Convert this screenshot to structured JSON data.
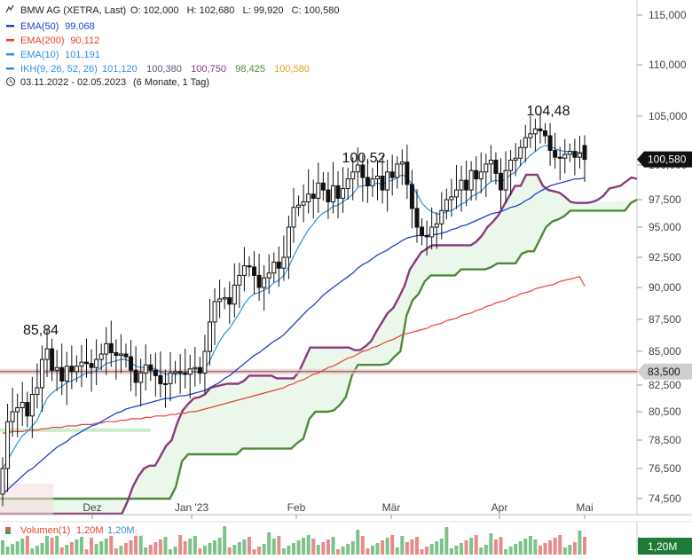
{
  "header": {
    "title": "BMW AG (XETRA, Last)",
    "ohlc": "O: 102,000   H: 102,680   L: 99,920   C: 100,580",
    "period": "03.11.2022 - 02.05.2023",
    "period_note": "(6 Monate, 1 Tag)"
  },
  "legend": [
    {
      "label": "EMA(50)",
      "value": "99,068",
      "color": "#1f3fcf"
    },
    {
      "label": "EMA(200)",
      "value": "90,112",
      "color": "#e8412e"
    },
    {
      "label": "EMA(10)",
      "value": "101,191",
      "color": "#2e8fe0"
    },
    {
      "label": "IKH(9, 26, 52, 26)",
      "value": "",
      "color": "#2e8fe0"
    }
  ],
  "ikh_values": [
    {
      "value": "101,120",
      "color": "#2e8fe0"
    },
    {
      "value": "100,380",
      "color": "#555577"
    },
    {
      "value": "100,750",
      "color": "#8a3a7a"
    },
    {
      "value": "98,425",
      "color": "#4a8a3a"
    },
    {
      "value": "100,580",
      "color": "#e0a020"
    }
  ],
  "annotations": [
    {
      "label": "85,84",
      "date": "2022-11-15",
      "value": 85.84
    },
    {
      "label": "100,52",
      "date": "2023-02-20",
      "value": 100.52
    },
    {
      "label": "104,48",
      "date": "2023-04-18",
      "value": 104.48
    }
  ],
  "price_tags": [
    {
      "label": "100,580",
      "value": 100.58,
      "color": "#111111"
    },
    {
      "label": "83,500",
      "value": 83.5,
      "color": "#cfcfcf"
    }
  ],
  "volume_panel": {
    "label": "Volumen(1)",
    "value_red": "1,20M",
    "value_green": "1,20M",
    "axis_tag": "1,20M"
  },
  "chart_data": {
    "type": "candlestick",
    "title": "BMW AG (XETRA, Last)",
    "x_axis": {
      "ticks": [
        "Dez",
        "Jan '23",
        "Feb",
        "Mär",
        "Apr",
        "Mai"
      ],
      "range": [
        "2022-11-03",
        "2023-05-02"
      ]
    },
    "y_axis": {
      "ticks": [
        "115,000",
        "110,000",
        "105,000",
        "100,000",
        "97,500",
        "95,000",
        "92,500",
        "90,000",
        "87,500",
        "85,000",
        "82,500",
        "80,500",
        "78,500",
        "76,500",
        "74,500"
      ],
      "tick_values": [
        115,
        110,
        105,
        100,
        97.5,
        95,
        92.5,
        90,
        87.5,
        85,
        82.5,
        80.5,
        78.5,
        76.5,
        74.5
      ],
      "range": [
        73.5,
        116
      ]
    },
    "horizontal_line": 83.5,
    "grid": false,
    "close": [
      76.5,
      79.8,
      80.5,
      80.8,
      81.2,
      80.2,
      81.8,
      82.3,
      84.4,
      85.2,
      83.6,
      83.8,
      82.8,
      83.9,
      83.5,
      83.9,
      84.2,
      84.1,
      83.8,
      84.4,
      84.8,
      85.6,
      84.9,
      84.7,
      84.8,
      84.6,
      83.6,
      82.7,
      83.4,
      84.0,
      83.6,
      83.2,
      82.6,
      82.6,
      83.4,
      83.5,
      83.4,
      83.3,
      83.7,
      83.8,
      83.4,
      85.0,
      87.3,
      88.9,
      89.1,
      89.2,
      88.7,
      90.2,
      91.0,
      91.8,
      91.7,
      91.0,
      90.0,
      90.8,
      91.2,
      92.1,
      91.6,
      92.5,
      95.0,
      96.8,
      97.0,
      97.3,
      97.9,
      97.6,
      98.7,
      98.2,
      97.3,
      98.5,
      97.6,
      98.3,
      99.0,
      99.5,
      100.0,
      99.1,
      98.5,
      99.0,
      99.2,
      98.2,
      99.5,
      99.1,
      100.1,
      100.3,
      98.6,
      96.7,
      95.0,
      94.3,
      94.2,
      95.0,
      95.3,
      96.5,
      97.5,
      97.7,
      98.2,
      98.9,
      98.2,
      99.6,
      99.0,
      99.5,
      100.1,
      100.5,
      99.4,
      98.2,
      99.6,
      100.5,
      100.7,
      101.8,
      102.8,
      103.2,
      103.7,
      103.5,
      103.0,
      101.5,
      100.8,
      100.7,
      101.1,
      101.4,
      100.8,
      101.2,
      100.58
    ],
    "open": [
      74.8,
      76.5,
      79.8,
      80.5,
      80.8,
      81.2,
      80.2,
      81.8,
      82.3,
      84.4,
      85.2,
      83.6,
      83.8,
      82.8,
      83.9,
      83.5,
      83.9,
      84.2,
      84.1,
      83.8,
      84.4,
      84.8,
      85.6,
      84.9,
      84.7,
      84.8,
      84.6,
      83.6,
      82.7,
      83.4,
      84.0,
      83.6,
      83.2,
      82.6,
      82.6,
      83.4,
      83.5,
      83.4,
      83.3,
      83.7,
      83.8,
      83.4,
      85.0,
      87.3,
      88.9,
      89.1,
      89.2,
      88.7,
      90.2,
      91.0,
      91.8,
      91.7,
      91.0,
      90.0,
      90.8,
      91.2,
      92.1,
      91.6,
      92.5,
      95.0,
      96.8,
      97.0,
      97.3,
      97.9,
      97.6,
      98.7,
      98.2,
      97.3,
      98.5,
      97.6,
      98.3,
      99.0,
      99.5,
      100.0,
      99.1,
      98.5,
      99.0,
      99.2,
      98.2,
      99.5,
      99.1,
      100.1,
      100.3,
      98.6,
      96.7,
      95.0,
      94.3,
      94.2,
      95.0,
      95.3,
      96.5,
      97.5,
      97.7,
      98.2,
      98.9,
      98.2,
      99.6,
      99.0,
      99.5,
      100.1,
      100.5,
      99.4,
      98.2,
      99.6,
      100.5,
      100.7,
      101.8,
      102.8,
      103.2,
      103.7,
      103.5,
      103.0,
      101.5,
      100.8,
      100.7,
      101.1,
      101.4,
      100.8,
      102.0
    ],
    "ema10": [
      76.5,
      77.1,
      77.7,
      78.3,
      78.8,
      79.1,
      79.5,
      79.9,
      80.7,
      81.5,
      81.9,
      82.2,
      82.4,
      82.7,
      82.8,
      83.0,
      83.2,
      83.4,
      83.4,
      83.6,
      83.8,
      84.1,
      84.2,
      84.3,
      84.4,
      84.4,
      84.2,
      83.9,
      83.8,
      83.8,
      83.8,
      83.7,
      83.5,
      83.3,
      83.3,
      83.3,
      83.3,
      83.3,
      83.4,
      83.5,
      83.4,
      83.7,
      84.3,
      85.1,
      85.8,
      86.4,
      86.8,
      87.4,
      88.0,
      88.7,
      89.2,
      89.5,
      89.6,
      89.8,
      90.0,
      90.4,
      90.6,
      91.0,
      91.7,
      92.6,
      93.4,
      94.1,
      94.8,
      95.3,
      95.9,
      96.3,
      96.5,
      96.9,
      97.0,
      97.3,
      97.6,
      97.9,
      98.4,
      98.5,
      98.5,
      98.6,
      98.7,
      98.6,
      98.8,
      98.9,
      99.1,
      99.3,
      99.1,
      98.6,
      97.9,
      97.2,
      96.7,
      96.4,
      96.2,
      96.2,
      96.4,
      96.5,
      96.8,
      97.1,
      97.3,
      97.7,
      97.9,
      98.1,
      98.5,
      98.8,
      98.9,
      98.8,
      99.0,
      99.3,
      99.5,
      100.0,
      100.5,
      101.0,
      101.4,
      101.8,
      102.0,
      101.9,
      101.7,
      101.5,
      101.4,
      101.4,
      101.3,
      101.3,
      101.2
    ],
    "ema50": [
      74.8,
      75.1,
      75.4,
      75.7,
      76.0,
      76.3,
      76.5,
      76.8,
      77.1,
      77.4,
      77.7,
      78.0,
      78.2,
      78.4,
      78.7,
      78.9,
      79.1,
      79.3,
      79.5,
      79.6,
      79.8,
      80.0,
      80.2,
      80.4,
      80.5,
      80.7,
      80.8,
      80.9,
      81.0,
      81.1,
      81.2,
      81.3,
      81.4,
      81.5,
      81.5,
      81.6,
      81.7,
      81.7,
      81.8,
      81.9,
      82.0,
      82.1,
      82.3,
      82.5,
      82.7,
      83.0,
      83.2,
      83.5,
      83.8,
      84.1,
      84.4,
      84.7,
      84.9,
      85.2,
      85.5,
      85.8,
      86.0,
      86.3,
      86.7,
      87.1,
      87.5,
      87.9,
      88.3,
      88.6,
      89.0,
      89.4,
      89.7,
      90.0,
      90.3,
      90.6,
      90.9,
      91.2,
      91.6,
      91.9,
      92.1,
      92.4,
      92.7,
      92.9,
      93.1,
      93.4,
      93.6,
      93.9,
      94.1,
      94.2,
      94.3,
      94.3,
      94.3,
      94.4,
      94.4,
      94.5,
      94.6,
      94.8,
      94.9,
      95.1,
      95.2,
      95.4,
      95.6,
      95.8,
      96.0,
      96.2,
      96.3,
      96.4,
      96.6,
      96.8,
      96.9,
      97.1,
      97.4,
      97.6,
      97.9,
      98.1,
      98.3,
      98.5,
      98.6,
      98.7,
      98.8,
      98.9,
      99.0,
      99.0,
      99.07
    ],
    "ema200": [
      79.0,
      79.0,
      79.1,
      79.1,
      79.1,
      79.2,
      79.2,
      79.2,
      79.3,
      79.3,
      79.4,
      79.4,
      79.4,
      79.5,
      79.5,
      79.5,
      79.6,
      79.6,
      79.6,
      79.7,
      79.7,
      79.8,
      79.8,
      79.8,
      79.9,
      79.9,
      80.0,
      80.0,
      80.0,
      80.1,
      80.1,
      80.2,
      80.2,
      80.2,
      80.3,
      80.3,
      80.4,
      80.4,
      80.5,
      80.5,
      80.6,
      80.7,
      80.8,
      80.9,
      81.0,
      81.1,
      81.2,
      81.3,
      81.4,
      81.5,
      81.6,
      81.7,
      81.8,
      81.9,
      82.0,
      82.1,
      82.2,
      82.3,
      82.5,
      82.6,
      82.8,
      82.9,
      83.1,
      83.3,
      83.4,
      83.6,
      83.8,
      83.9,
      84.1,
      84.3,
      84.5,
      84.6,
      84.8,
      85.0,
      85.1,
      85.3,
      85.4,
      85.6,
      85.8,
      85.9,
      86.1,
      86.3,
      86.4,
      86.5,
      86.6,
      86.7,
      86.8,
      87.0,
      87.1,
      87.2,
      87.4,
      87.5,
      87.6,
      87.8,
      87.9,
      88.0,
      88.2,
      88.3,
      88.5,
      88.6,
      88.8,
      88.9,
      89.0,
      89.2,
      89.3,
      89.5,
      89.6,
      89.7,
      89.9,
      90.0,
      90.1,
      90.2,
      90.3,
      90.5,
      90.6,
      90.7,
      90.8,
      90.9,
      90.11
    ],
    "senkou_a": [
      73.5,
      73.5,
      73.5,
      73.5,
      73.5,
      73.5,
      73.5,
      73.5,
      73.5,
      73.5,
      73.5,
      73.5,
      73.5,
      73.5,
      73.5,
      73.5,
      73.5,
      73.5,
      73.5,
      73.5,
      73.5,
      73.5,
      73.5,
      74.3,
      75.3,
      76.0,
      76.5,
      76.7,
      76.7,
      77.4,
      78.1,
      78.5,
      79.7,
      80.6,
      81.1,
      81.5,
      81.6,
      81.8,
      82.3,
      82.4,
      82.5,
      82.6,
      82.6,
      82.6,
      82.8,
      83.2,
      83.2,
      83.2,
      83.2,
      83.2,
      83.0,
      83.0,
      83.0,
      83.0,
      83.5,
      84.4,
      85.3,
      85.3,
      85.3,
      85.3,
      85.3,
      85.3,
      85.3,
      85.3,
      85.1,
      85.1,
      85.4,
      85.8,
      86.6,
      87.3,
      88.0,
      88.4,
      89.2,
      90.1,
      91.5,
      92.2,
      92.9,
      93.2,
      93.5,
      93.5,
      93.5,
      93.5,
      93.5,
      93.5,
      93.5,
      93.5,
      93.8,
      94.3,
      95.0,
      95.5,
      96.1,
      97.0,
      97.8,
      98.5,
      98.5,
      99.3,
      99.3,
      99.3,
      98.5,
      98.2,
      98.1,
      98.0,
      97.7,
      97.3,
      97.2,
      97.2,
      97.2,
      97.3,
      97.5,
      97.8,
      98.3,
      98.4,
      98.5,
      98.8,
      99.1,
      99.0
    ],
    "senkou_b": [
      74.5,
      74.5,
      74.5,
      74.5,
      74.5,
      74.5,
      74.5,
      74.5,
      74.5,
      74.5,
      74.5,
      74.5,
      74.5,
      74.5,
      74.5,
      74.5,
      74.5,
      74.5,
      74.5,
      74.5,
      74.5,
      74.5,
      74.5,
      74.5,
      74.5,
      74.5,
      74.5,
      74.5,
      74.5,
      75.3,
      77.0,
      77.5,
      77.5,
      77.5,
      77.5,
      77.5,
      77.5,
      77.5,
      77.5,
      77.5,
      77.9,
      77.9,
      77.9,
      77.9,
      77.9,
      77.9,
      77.9,
      77.9,
      77.9,
      78.3,
      78.6,
      80.0,
      80.5,
      80.5,
      80.5,
      80.6,
      81.0,
      81.6,
      83.2,
      84.0,
      84.0,
      84.0,
      84.0,
      84.0,
      84.1,
      84.6,
      85.0,
      87.8,
      89.0,
      89.5,
      90.5,
      91.0,
      91.0,
      91.0,
      91.0,
      91.0,
      91.5,
      91.5,
      91.5,
      91.5,
      91.5,
      91.7,
      92.0,
      92.0,
      92.0,
      92.0,
      92.8,
      93.0,
      93.0,
      94.0,
      95.0,
      95.5,
      95.7,
      96.0,
      96.5,
      96.5,
      96.5,
      96.5,
      96.5,
      96.5,
      96.5,
      96.5,
      96.5,
      96.5,
      97.2,
      97.5
    ]
  }
}
